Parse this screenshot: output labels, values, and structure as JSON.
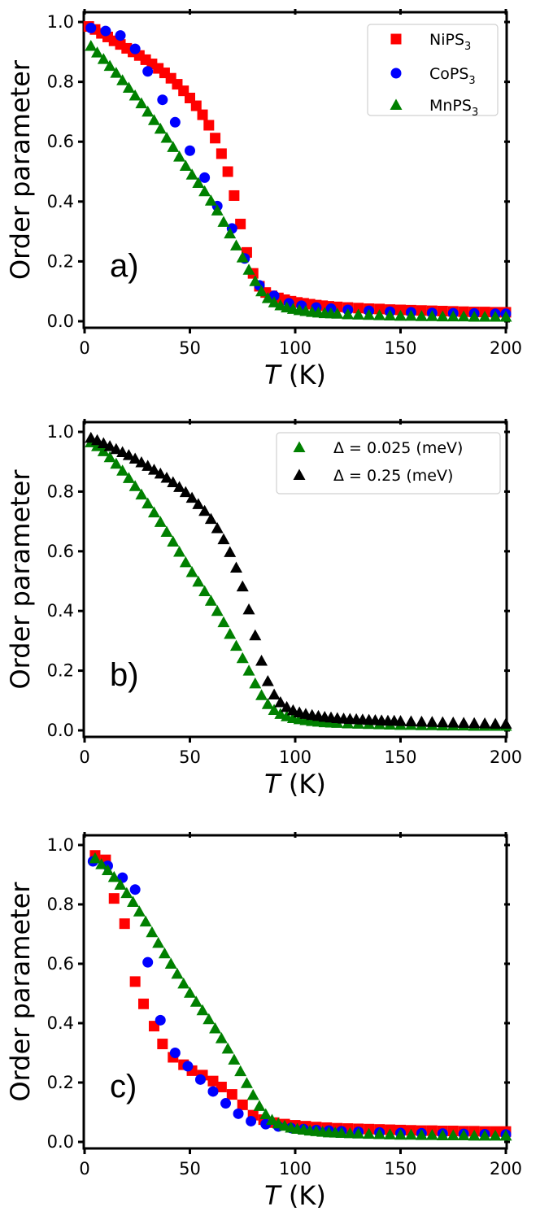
{
  "colors": {
    "red": "#ff0000",
    "blue": "#0000ff",
    "green": "#008000",
    "black": "#000000"
  },
  "chart_data": [
    {
      "type": "scatter",
      "panel_label": "a)",
      "xlabel_italic": "T",
      "xlabel_unit": " (K)",
      "ylabel": "Order parameter",
      "xlim": [
        0,
        200
      ],
      "ylim": [
        0,
        1.03
      ],
      "xticks": [
        "0",
        "50",
        "100",
        "150",
        "200"
      ],
      "yticks": [
        "0.0",
        "0.2",
        "0.4",
        "0.6",
        "0.8",
        "1.0"
      ],
      "legend_position": "top-right",
      "series": [
        {
          "name": "NiPS",
          "sub": "3",
          "marker": "square",
          "color": "#ff0000",
          "x": [
            2,
            5,
            8,
            11,
            14,
            17,
            20,
            23,
            26,
            29,
            32,
            35,
            38,
            41,
            44,
            47,
            50,
            53,
            56,
            59,
            62,
            65,
            68,
            71,
            74,
            77,
            80,
            83,
            86,
            89,
            92,
            95,
            98,
            101,
            104,
            107,
            110,
            113,
            116,
            120,
            125,
            130,
            135,
            140,
            145,
            150,
            155,
            160,
            165,
            170,
            175,
            180,
            185,
            190,
            195,
            200
          ],
          "y": [
            0.985,
            0.975,
            0.962,
            0.95,
            0.937,
            0.925,
            0.912,
            0.9,
            0.888,
            0.874,
            0.86,
            0.845,
            0.83,
            0.812,
            0.792,
            0.77,
            0.746,
            0.72,
            0.69,
            0.655,
            0.612,
            0.56,
            0.5,
            0.42,
            0.325,
            0.23,
            0.16,
            0.117,
            0.096,
            0.085,
            0.078,
            0.072,
            0.067,
            0.063,
            0.06,
            0.057,
            0.054,
            0.052,
            0.05,
            0.048,
            0.046,
            0.044,
            0.042,
            0.041,
            0.039,
            0.038,
            0.037,
            0.036,
            0.035,
            0.034,
            0.033,
            0.032,
            0.031,
            0.031,
            0.03,
            0.03
          ]
        },
        {
          "name": "CoPS",
          "sub": "3",
          "marker": "circle",
          "color": "#0000ff",
          "x": [
            3,
            10,
            17,
            24,
            30,
            37,
            43,
            50,
            57,
            63,
            70,
            76,
            83,
            90,
            97,
            103,
            110,
            117,
            125,
            135,
            145,
            155,
            165,
            175,
            185,
            195,
            200
          ],
          "y": [
            0.98,
            0.97,
            0.955,
            0.91,
            0.835,
            0.74,
            0.665,
            0.57,
            0.48,
            0.385,
            0.31,
            0.21,
            0.12,
            0.085,
            0.06,
            0.052,
            0.046,
            0.042,
            0.038,
            0.035,
            0.032,
            0.03,
            0.028,
            0.027,
            0.026,
            0.025,
            0.025
          ]
        },
        {
          "name": "MnPS",
          "sub": "3",
          "marker": "triangle",
          "color": "#008000",
          "x": [
            3,
            6,
            9,
            12,
            15,
            18,
            21,
            24,
            27,
            30,
            33,
            36,
            39,
            42,
            45,
            48,
            51,
            54,
            57,
            60,
            63,
            66,
            69,
            72,
            75,
            78,
            81,
            84,
            87,
            90,
            93,
            96,
            99,
            102,
            105,
            108,
            111,
            114,
            117,
            120,
            125,
            130,
            135,
            140,
            145,
            150,
            155,
            160,
            165,
            170,
            175,
            180,
            185,
            190,
            195,
            200
          ],
          "y": [
            0.92,
            0.898,
            0.876,
            0.853,
            0.83,
            0.805,
            0.78,
            0.754,
            0.728,
            0.7,
            0.672,
            0.643,
            0.613,
            0.582,
            0.55,
            0.519,
            0.49,
            0.462,
            0.434,
            0.403,
            0.37,
            0.332,
            0.293,
            0.253,
            0.213,
            0.172,
            0.134,
            0.1,
            0.077,
            0.063,
            0.053,
            0.046,
            0.041,
            0.037,
            0.034,
            0.031,
            0.029,
            0.027,
            0.026,
            0.025,
            0.023,
            0.022,
            0.021,
            0.02,
            0.019,
            0.018,
            0.018,
            0.017,
            0.017,
            0.016,
            0.016,
            0.016,
            0.015,
            0.015,
            0.015,
            0.015
          ]
        }
      ]
    },
    {
      "type": "scatter",
      "panel_label": "b)",
      "xlabel_italic": "T",
      "xlabel_unit": " (K)",
      "ylabel": "Order parameter",
      "xlim": [
        0,
        200
      ],
      "ylim": [
        0,
        1.03
      ],
      "xticks": [
        "0",
        "50",
        "100",
        "150",
        "200"
      ],
      "yticks": [
        "0.0",
        "0.2",
        "0.4",
        "0.6",
        "0.8",
        "1.0"
      ],
      "legend_position": "top-right",
      "series": [
        {
          "name": "Δ = 0.025 (meV)",
          "sub": "",
          "marker": "triangle",
          "color": "#008000",
          "x": [
            3,
            6,
            9,
            12,
            15,
            18,
            21,
            24,
            27,
            30,
            33,
            36,
            39,
            42,
            45,
            48,
            51,
            54,
            57,
            60,
            63,
            66,
            69,
            72,
            75,
            78,
            81,
            84,
            87,
            90,
            93,
            96,
            99,
            102,
            105,
            108,
            111,
            114,
            117,
            120,
            125,
            130,
            135,
            140,
            145,
            150,
            155,
            160,
            165,
            170,
            175,
            180,
            185,
            190,
            195,
            200
          ],
          "y": [
            0.965,
            0.952,
            0.935,
            0.915,
            0.893,
            0.87,
            0.845,
            0.818,
            0.79,
            0.76,
            0.73,
            0.698,
            0.665,
            0.632,
            0.598,
            0.563,
            0.53,
            0.498,
            0.466,
            0.434,
            0.4,
            0.362,
            0.323,
            0.283,
            0.242,
            0.2,
            0.157,
            0.118,
            0.088,
            0.068,
            0.055,
            0.047,
            0.041,
            0.037,
            0.034,
            0.031,
            0.029,
            0.027,
            0.026,
            0.025,
            0.023,
            0.022,
            0.021,
            0.02,
            0.019,
            0.018,
            0.018,
            0.017,
            0.017,
            0.016,
            0.016,
            0.016,
            0.015,
            0.015,
            0.015,
            0.015
          ]
        },
        {
          "name": "Δ = 0.25 (meV)",
          "sub": "",
          "marker": "triangle",
          "color": "#000000",
          "x": [
            3,
            6,
            9,
            12,
            15,
            18,
            21,
            24,
            27,
            30,
            33,
            36,
            39,
            42,
            45,
            48,
            51,
            54,
            57,
            60,
            63,
            66,
            69,
            72,
            75,
            78,
            81,
            84,
            87,
            90,
            93,
            96,
            99,
            102,
            105,
            108,
            111,
            114,
            117,
            120,
            123,
            126,
            129,
            132,
            135,
            138,
            141,
            144,
            147,
            150,
            155,
            160,
            165,
            170,
            175,
            180,
            185,
            190,
            195,
            200
          ],
          "y": [
            0.98,
            0.972,
            0.962,
            0.952,
            0.942,
            0.932,
            0.922,
            0.91,
            0.898,
            0.886,
            0.873,
            0.86,
            0.846,
            0.831,
            0.815,
            0.798,
            0.779,
            0.758,
            0.735,
            0.708,
            0.677,
            0.64,
            0.597,
            0.545,
            0.482,
            0.405,
            0.318,
            0.233,
            0.165,
            0.12,
            0.094,
            0.078,
            0.067,
            0.06,
            0.055,
            0.051,
            0.048,
            0.045,
            0.043,
            0.041,
            0.039,
            0.038,
            0.037,
            0.036,
            0.035,
            0.034,
            0.033,
            0.032,
            0.032,
            0.031,
            0.03,
            0.029,
            0.028,
            0.027,
            0.026,
            0.025,
            0.024,
            0.023,
            0.022,
            0.022
          ]
        }
      ]
    },
    {
      "type": "scatter",
      "panel_label": "c)",
      "xlabel_italic": "T",
      "xlabel_unit": " (K)",
      "ylabel": "Order parameter",
      "xlim": [
        0,
        200
      ],
      "ylim": [
        0,
        1.03
      ],
      "xticks": [
        "0",
        "50",
        "100",
        "150",
        "200"
      ],
      "yticks": [
        "0.0",
        "0.2",
        "0.4",
        "0.6",
        "0.8",
        "1.0"
      ],
      "legend_position": "none",
      "series": [
        {
          "name": "NiPS",
          "sub": "3",
          "marker": "square",
          "color": "#ff0000",
          "x": [
            5,
            10,
            14,
            19,
            24,
            28,
            33,
            37,
            42,
            47,
            51,
            56,
            61,
            65,
            70,
            75,
            80,
            85,
            90,
            95,
            100,
            105,
            110,
            115,
            120,
            125,
            130,
            135,
            140,
            145,
            150,
            155,
            160,
            165,
            170,
            175,
            180,
            185,
            190,
            195,
            200
          ],
          "y": [
            0.965,
            0.95,
            0.82,
            0.735,
            0.54,
            0.465,
            0.39,
            0.33,
            0.285,
            0.26,
            0.24,
            0.225,
            0.205,
            0.185,
            0.16,
            0.125,
            0.09,
            0.075,
            0.065,
            0.06,
            0.056,
            0.053,
            0.05,
            0.048,
            0.046,
            0.045,
            0.044,
            0.043,
            0.042,
            0.041,
            0.04,
            0.039,
            0.038,
            0.038,
            0.037,
            0.037,
            0.036,
            0.036,
            0.035,
            0.035,
            0.035
          ]
        },
        {
          "name": "CoPS",
          "sub": "3",
          "marker": "circle",
          "color": "#0000ff",
          "x": [
            4,
            11,
            18,
            24,
            30,
            36,
            43,
            49,
            55,
            61,
            67,
            73,
            79,
            86,
            92,
            98,
            104,
            110,
            116,
            122,
            130,
            140,
            150,
            160,
            170,
            180,
            190,
            200
          ],
          "y": [
            0.945,
            0.93,
            0.89,
            0.85,
            0.605,
            0.41,
            0.3,
            0.255,
            0.21,
            0.17,
            0.13,
            0.095,
            0.07,
            0.06,
            0.052,
            0.047,
            0.043,
            0.04,
            0.038,
            0.036,
            0.034,
            0.032,
            0.03,
            0.029,
            0.028,
            0.027,
            0.026,
            0.025
          ]
        },
        {
          "name": "MnPS",
          "sub": "3",
          "marker": "triangle",
          "color": "#008000",
          "x": [
            5,
            8,
            11,
            14,
            17,
            20,
            23,
            26,
            29,
            32,
            35,
            38,
            41,
            44,
            47,
            50,
            53,
            56,
            59,
            62,
            65,
            68,
            71,
            74,
            77,
            80,
            83,
            86,
            89,
            92,
            95,
            98,
            101,
            104,
            107,
            110,
            113,
            116,
            119,
            122,
            126,
            130,
            135,
            140,
            145,
            150,
            155,
            160,
            165,
            170,
            175,
            180,
            185,
            190,
            195,
            200
          ],
          "y": [
            0.955,
            0.935,
            0.915,
            0.892,
            0.866,
            0.838,
            0.808,
            0.776,
            0.742,
            0.706,
            0.67,
            0.635,
            0.6,
            0.566,
            0.533,
            0.502,
            0.472,
            0.443,
            0.413,
            0.382,
            0.349,
            0.314,
            0.277,
            0.238,
            0.198,
            0.158,
            0.121,
            0.093,
            0.074,
            0.062,
            0.054,
            0.048,
            0.044,
            0.041,
            0.038,
            0.036,
            0.034,
            0.032,
            0.031,
            0.03,
            0.029,
            0.028,
            0.027,
            0.026,
            0.025,
            0.024,
            0.024,
            0.023,
            0.023,
            0.022,
            0.022,
            0.022,
            0.021,
            0.021,
            0.021,
            0.021
          ]
        }
      ]
    }
  ]
}
